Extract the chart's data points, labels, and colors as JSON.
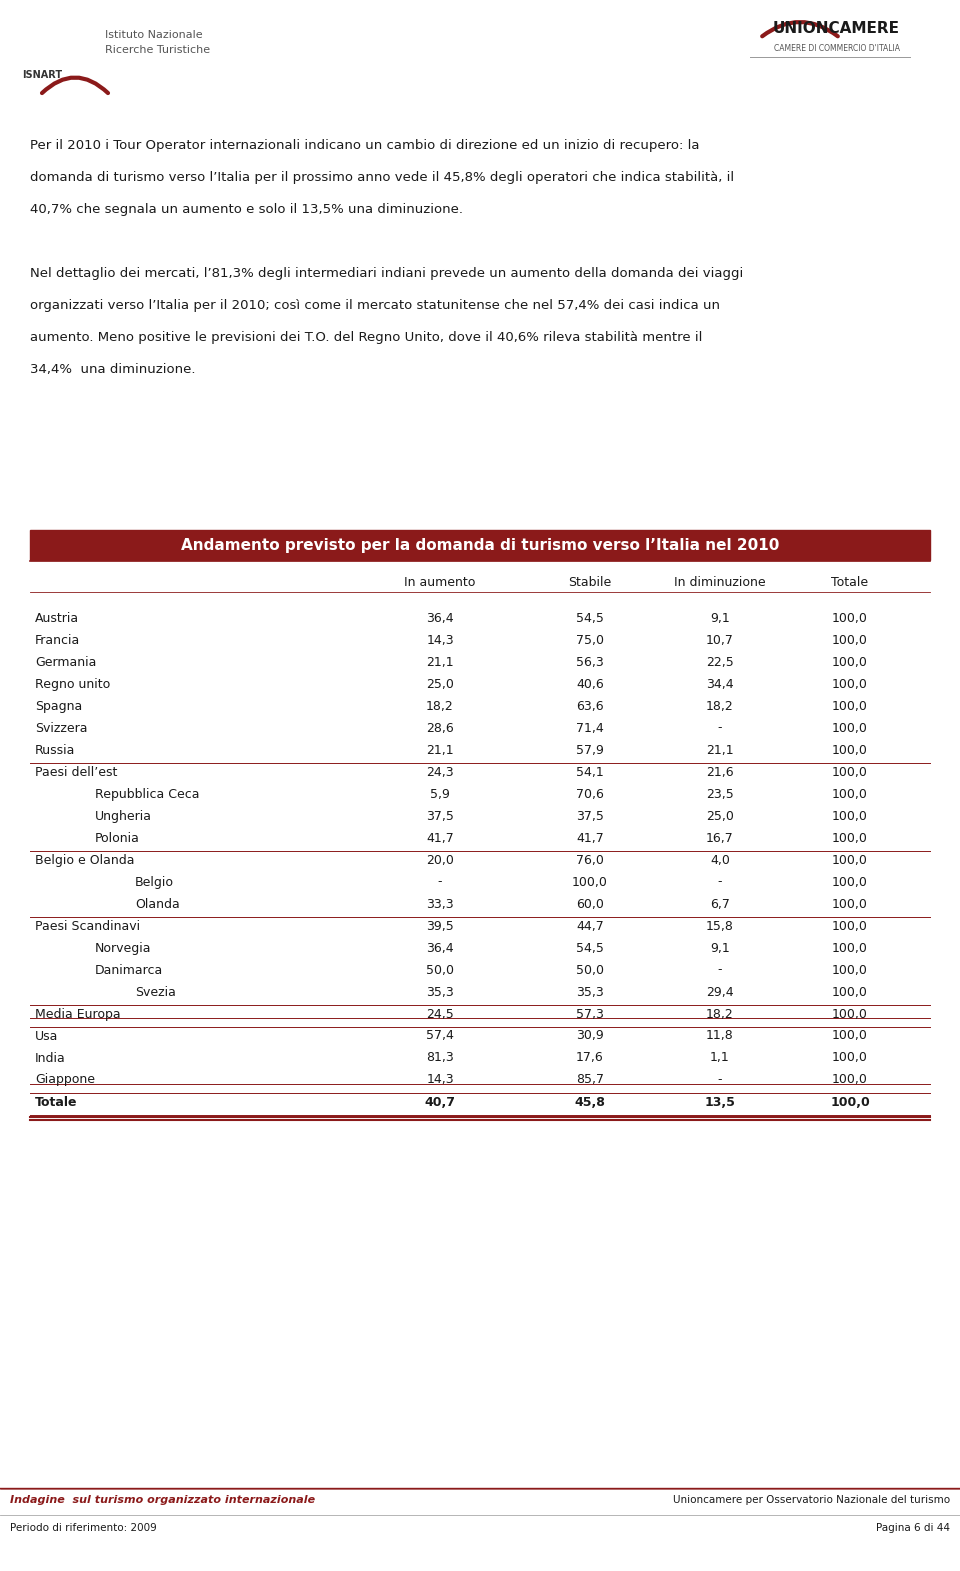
{
  "page_width": 9.6,
  "page_height": 15.71,
  "bg_color": "#ffffff",
  "header_text1": "Per il 2010 i Tour Operator internazionali indicano un cambio di direzione ed un inizio di recupero: la",
  "header_text2": "domanda di turismo verso l’Italia per il prossimo anno vede il 45,8% degli operatori che indica stabilità, il",
  "header_text3": "40,7% che segnala un aumento e solo il 13,5% una diminuzione.",
  "header_text4": "Nel dettaglio dei mercati, l’81,3% degli intermediari indiani prevede un aumento della domanda dei viaggi",
  "header_text5": "organizzati verso l’Italia per il 2010; così come il mercato statunitense che nel 57,4% dei casi indica un",
  "header_text6": "aumento. Meno positive le previsioni dei T.O. del Regno Unito, dove il 40,6% rileva stabilità mentre il",
  "header_text7": "34,4%  una diminuzione.",
  "table_title": "Andamento previsto per la domanda di turismo verso l’Italia nel 2010",
  "table_title_bg": "#8B1A1A",
  "table_title_color": "#ffffff",
  "col_headers": [
    "",
    "In aumento",
    "Stabile",
    "In diminuzione",
    "Totale"
  ],
  "rows": [
    {
      "label": "Austria",
      "indent": 0,
      "values": [
        "36,4",
        "54,5",
        "9,1",
        "100,0"
      ],
      "separator_above": false,
      "separator_below": false,
      "bold": false
    },
    {
      "label": "Francia",
      "indent": 0,
      "values": [
        "14,3",
        "75,0",
        "10,7",
        "100,0"
      ],
      "separator_above": false,
      "separator_below": false,
      "bold": false
    },
    {
      "label": "Germania",
      "indent": 0,
      "values": [
        "21,1",
        "56,3",
        "22,5",
        "100,0"
      ],
      "separator_above": false,
      "separator_below": false,
      "bold": false
    },
    {
      "label": "Regno unito",
      "indent": 0,
      "values": [
        "25,0",
        "40,6",
        "34,4",
        "100,0"
      ],
      "separator_above": false,
      "separator_below": false,
      "bold": false
    },
    {
      "label": "Spagna",
      "indent": 0,
      "values": [
        "18,2",
        "63,6",
        "18,2",
        "100,0"
      ],
      "separator_above": false,
      "separator_below": false,
      "bold": false
    },
    {
      "label": "Svizzera",
      "indent": 0,
      "values": [
        "28,6",
        "71,4",
        "-",
        "100,0"
      ],
      "separator_above": false,
      "separator_below": false,
      "bold": false
    },
    {
      "label": "Russia",
      "indent": 0,
      "values": [
        "21,1",
        "57,9",
        "21,1",
        "100,0"
      ],
      "separator_above": false,
      "separator_below": true,
      "bold": false
    },
    {
      "label": "Paesi dell’est",
      "indent": 0,
      "values": [
        "24,3",
        "54,1",
        "21,6",
        "100,0"
      ],
      "separator_above": false,
      "separator_below": false,
      "bold": false
    },
    {
      "label": "Repubblica Ceca",
      "indent": 1,
      "values": [
        "5,9",
        "70,6",
        "23,5",
        "100,0"
      ],
      "separator_above": false,
      "separator_below": false,
      "bold": false
    },
    {
      "label": "Ungheria",
      "indent": 1,
      "values": [
        "37,5",
        "37,5",
        "25,0",
        "100,0"
      ],
      "separator_above": false,
      "separator_below": false,
      "bold": false
    },
    {
      "label": "Polonia",
      "indent": 1,
      "values": [
        "41,7",
        "41,7",
        "16,7",
        "100,0"
      ],
      "separator_above": false,
      "separator_below": true,
      "bold": false
    },
    {
      "label": "Belgio e Olanda",
      "indent": 0,
      "values": [
        "20,0",
        "76,0",
        "4,0",
        "100,0"
      ],
      "separator_above": false,
      "separator_below": false,
      "bold": false
    },
    {
      "label": "Belgio",
      "indent": 2,
      "values": [
        "-",
        "100,0",
        "-",
        "100,0"
      ],
      "separator_above": false,
      "separator_below": false,
      "bold": false
    },
    {
      "label": "Olanda",
      "indent": 2,
      "values": [
        "33,3",
        "60,0",
        "6,7",
        "100,0"
      ],
      "separator_above": false,
      "separator_below": true,
      "bold": false
    },
    {
      "label": "Paesi Scandinavi",
      "indent": 0,
      "values": [
        "39,5",
        "44,7",
        "15,8",
        "100,0"
      ],
      "separator_above": false,
      "separator_below": false,
      "bold": false
    },
    {
      "label": "Norvegia",
      "indent": 1,
      "values": [
        "36,4",
        "54,5",
        "9,1",
        "100,0"
      ],
      "separator_above": false,
      "separator_below": false,
      "bold": false
    },
    {
      "label": "Danimarca",
      "indent": 1,
      "values": [
        "50,0",
        "50,0",
        "-",
        "100,0"
      ],
      "separator_above": false,
      "separator_below": false,
      "bold": false
    },
    {
      "label": "Svezia",
      "indent": 2,
      "values": [
        "35,3",
        "35,3",
        "29,4",
        "100,0"
      ],
      "separator_above": false,
      "separator_below": true,
      "bold": false
    },
    {
      "label": "Media Europa",
      "indent": 0,
      "values": [
        "24,5",
        "57,3",
        "18,2",
        "100,0"
      ],
      "separator_above": false,
      "separator_below": true,
      "bold": false
    },
    {
      "label": "Usa",
      "indent": 0,
      "values": [
        "57,4",
        "30,9",
        "11,8",
        "100,0"
      ],
      "separator_above": true,
      "separator_below": false,
      "bold": false
    },
    {
      "label": "India",
      "indent": 0,
      "values": [
        "81,3",
        "17,6",
        "1,1",
        "100,0"
      ],
      "separator_above": false,
      "separator_below": false,
      "bold": false
    },
    {
      "label": "Giappone",
      "indent": 0,
      "values": [
        "14,3",
        "85,7",
        "-",
        "100,0"
      ],
      "separator_above": false,
      "separator_below": true,
      "bold": false
    },
    {
      "label": "Totale",
      "indent": 0,
      "values": [
        "40,7",
        "45,8",
        "13,5",
        "100,0"
      ],
      "separator_above": true,
      "separator_below": true,
      "bold": true
    }
  ],
  "footer_left1": "Indagine  sul turismo organizzato internazionale",
  "footer_right1": "Unioncamere per Osservatorio Nazionale del turismo",
  "footer_left2": "Periodo di riferimento: 2009",
  "footer_right2": "Pagina 6 di 44",
  "dark_red": "#8B1A1A",
  "text_color": "#1a1a1a",
  "font_family": "DejaVu Sans",
  "body_fontsize": 9.5,
  "header_fontsize": 9.5,
  "table_fontsize": 9.0
}
